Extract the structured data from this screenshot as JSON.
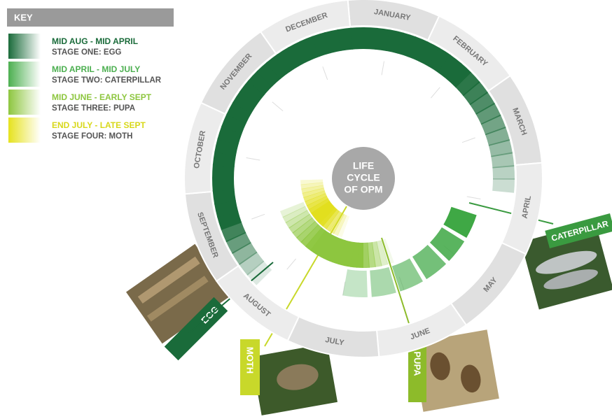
{
  "key": {
    "title": "KEY",
    "items": [
      {
        "period": "MID AUG - MID APRIL",
        "stage": "STAGE ONE: EGG"
      },
      {
        "period": "MID APRIL - MID JULY",
        "stage": "STAGE TWO: CATERPILLAR"
      },
      {
        "period": "MID JUNE - EARLY SEPT",
        "stage": "STAGE THREE: PUPA"
      },
      {
        "period": "END JULY - LATE SEPT",
        "stage": "STAGE FOUR: MOTH"
      }
    ]
  },
  "months": [
    "JANUARY",
    "FEBRUARY",
    "MARCH",
    "APRIL",
    "MAY",
    "JUNE",
    "JULY",
    "AUGUST",
    "SEPTEMBER",
    "OCTOBER",
    "NOVEMBER",
    "DECEMBER"
  ],
  "center": {
    "lines": [
      "LIFE",
      "CYCLE",
      "OF OPM"
    ]
  },
  "photos": {
    "egg": "EGG",
    "moth": "MOTH",
    "pupa": "PUPA",
    "caterpillar": "CATERPILLAR"
  }
}
